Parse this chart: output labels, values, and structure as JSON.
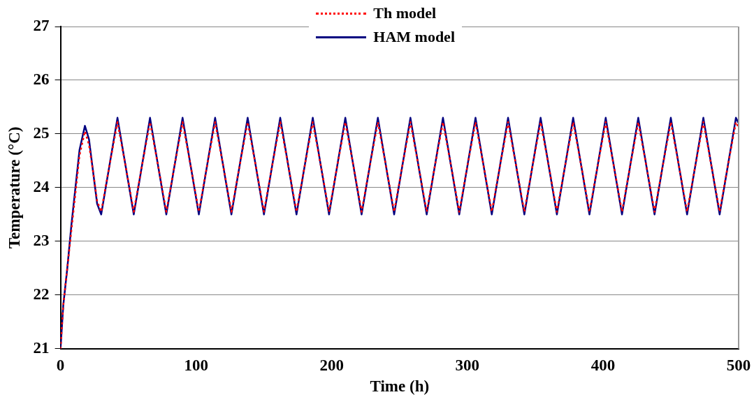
{
  "chart_data": {
    "type": "line",
    "xlabel": "Time (h)",
    "ylabel": "Temperature (°C)",
    "x": [
      0,
      2,
      5,
      8,
      11,
      14,
      18,
      21,
      24,
      27,
      30,
      36,
      42,
      48,
      54,
      60,
      66,
      72,
      78,
      84,
      90,
      96,
      102,
      108,
      114,
      120,
      126,
      132,
      138,
      144,
      150,
      156,
      162,
      168,
      174,
      180,
      186,
      192,
      198,
      204,
      210,
      216,
      222,
      228,
      234,
      240,
      246,
      252,
      258,
      264,
      270,
      276,
      282,
      288,
      294,
      300,
      306,
      312,
      318,
      324,
      330,
      336,
      342,
      348,
      354,
      360,
      366,
      372,
      378,
      384,
      390,
      396,
      402,
      408,
      414,
      420,
      426,
      432,
      438,
      444,
      450,
      456,
      462,
      468,
      474,
      480,
      486,
      492,
      498,
      500
    ],
    "series": [
      {
        "name": "Th model",
        "color": "#ff0000",
        "line_style": "dotted",
        "values": [
          21.0,
          21.8,
          22.5,
          23.2,
          23.9,
          24.6,
          25.05,
          24.8,
          24.3,
          23.75,
          23.55,
          24.4,
          25.22,
          24.4,
          23.55,
          24.4,
          25.22,
          24.4,
          23.55,
          24.4,
          25.22,
          24.4,
          23.55,
          24.4,
          25.22,
          24.4,
          23.55,
          24.4,
          25.22,
          24.4,
          23.55,
          24.4,
          25.22,
          24.4,
          23.55,
          24.4,
          25.22,
          24.4,
          23.55,
          24.4,
          25.22,
          24.4,
          23.55,
          24.4,
          25.22,
          24.4,
          23.55,
          24.4,
          25.22,
          24.4,
          23.55,
          24.4,
          25.22,
          24.4,
          23.55,
          24.4,
          25.22,
          24.4,
          23.55,
          24.4,
          25.22,
          24.4,
          23.55,
          24.4,
          25.22,
          24.4,
          23.55,
          24.4,
          25.22,
          24.4,
          23.55,
          24.4,
          25.22,
          24.4,
          23.55,
          24.4,
          25.22,
          24.4,
          23.55,
          24.4,
          25.22,
          24.4,
          23.55,
          24.4,
          25.22,
          24.4,
          23.55,
          24.4,
          25.22,
          25.12
        ]
      },
      {
        "name": "HAM model",
        "color": "#000080",
        "line_style": "solid",
        "values": [
          21.0,
          21.8,
          22.5,
          23.3,
          24.0,
          24.7,
          25.15,
          24.9,
          24.3,
          23.7,
          23.5,
          24.4,
          25.3,
          24.4,
          23.5,
          24.4,
          25.3,
          24.4,
          23.5,
          24.4,
          25.3,
          24.4,
          23.5,
          24.4,
          25.3,
          24.4,
          23.5,
          24.4,
          25.3,
          24.4,
          23.5,
          24.4,
          25.3,
          24.4,
          23.5,
          24.4,
          25.3,
          24.4,
          23.5,
          24.4,
          25.3,
          24.4,
          23.5,
          24.4,
          25.3,
          24.4,
          23.5,
          24.4,
          25.3,
          24.4,
          23.5,
          24.4,
          25.3,
          24.4,
          23.5,
          24.4,
          25.3,
          24.4,
          23.5,
          24.4,
          25.3,
          24.4,
          23.5,
          24.4,
          25.3,
          24.4,
          23.5,
          24.4,
          25.3,
          24.4,
          23.5,
          24.4,
          25.3,
          24.4,
          23.5,
          24.4,
          25.3,
          24.4,
          23.5,
          24.4,
          25.3,
          24.4,
          23.5,
          24.4,
          25.3,
          24.4,
          23.5,
          24.4,
          25.3,
          25.2
        ]
      }
    ],
    "xlim": [
      0,
      500
    ],
    "xticks": [
      0,
      100,
      200,
      300,
      400,
      500
    ],
    "ylim": [
      21,
      27
    ],
    "yticks": [
      21,
      22,
      23,
      24,
      25,
      26,
      27
    ],
    "grid": "y",
    "legend": "top",
    "marker": "none"
  }
}
